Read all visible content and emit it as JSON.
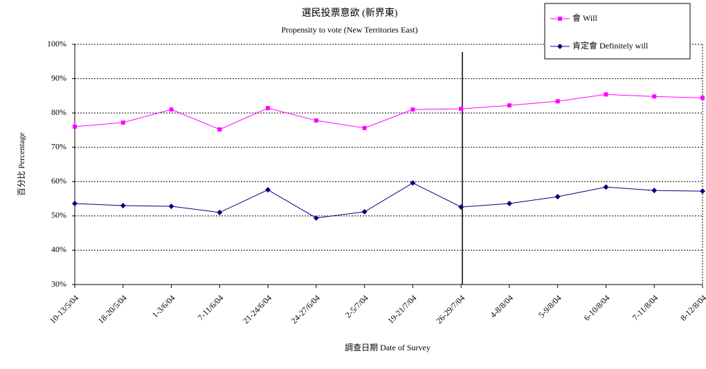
{
  "chart_data": {
    "type": "line",
    "title": "選民投票意欲 (新界東)",
    "subtitle": "Propensity to vote (New Territories East)",
    "y_label": "百分比 Percentage",
    "x_label": "調查日期 Date of Survey",
    "categories": [
      "10-13/5/04",
      "18-20/5/04",
      "1-3/6/04",
      "7-11/6/04",
      "21-24/6/04",
      "24-27/6/04",
      "2-5/7/04",
      "19-21/7/04",
      "26-29/7/04",
      "4-8/8/04",
      "5-9/8/04",
      "6-10/8/04",
      "7-11/8/04",
      "8-12/8/04"
    ],
    "series": [
      {
        "name": "會 Will",
        "color": "#ff00ff",
        "marker": "square",
        "values": [
          76,
          77.2,
          81,
          75.2,
          81.4,
          77.8,
          75.6,
          81,
          81.2,
          82.2,
          83.4,
          85.4,
          84.8,
          84.4
        ]
      },
      {
        "name": "肯定會 Definitely will",
        "color": "#000080",
        "marker": "diamond",
        "values": [
          53.6,
          53,
          52.8,
          51,
          57.6,
          49.4,
          51.2,
          59.6,
          52.6,
          53.6,
          55.6,
          58.4,
          57.4,
          57.2
        ]
      }
    ],
    "ylim": [
      30,
      100
    ],
    "yticks": [
      {
        "value": 30,
        "label": "30%"
      },
      {
        "value": 40,
        "label": "40%"
      },
      {
        "value": 50,
        "label": "50%"
      },
      {
        "value": 60,
        "label": "60%"
      },
      {
        "value": 70,
        "label": "70%"
      },
      {
        "value": 80,
        "label": "80%"
      },
      {
        "value": 90,
        "label": "90%"
      },
      {
        "value": 100,
        "label": "100%"
      }
    ],
    "grid": true,
    "legend": "top-right"
  }
}
